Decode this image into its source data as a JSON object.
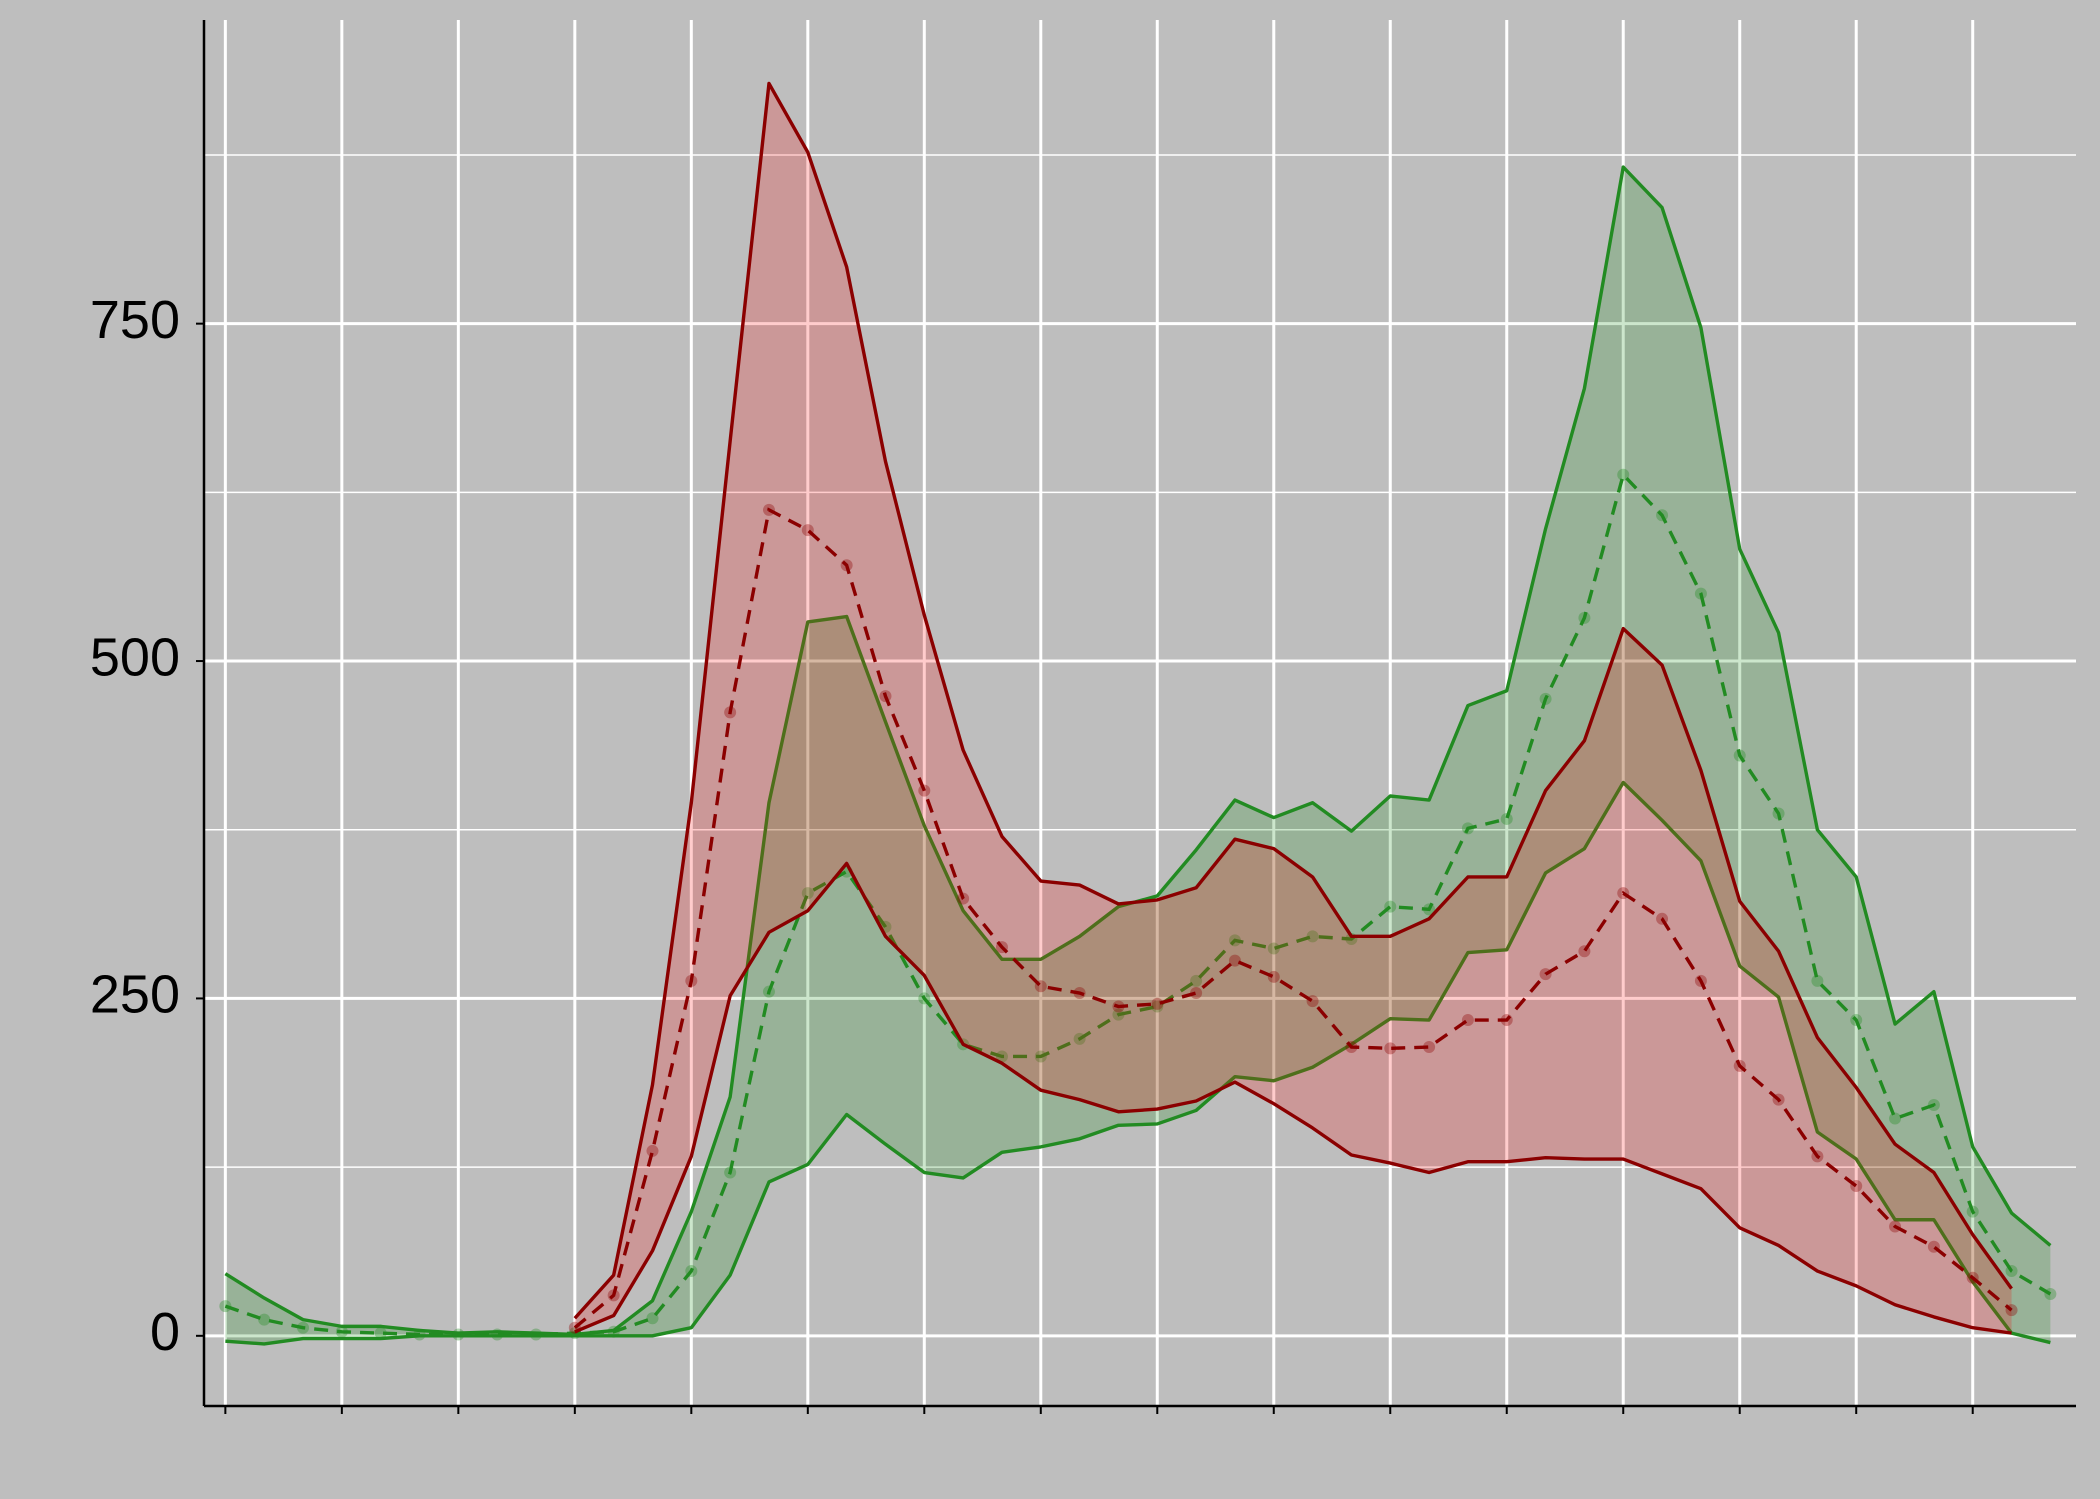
{
  "chart_data": {
    "type": "band",
    "x": [
      0,
      1,
      2,
      3,
      4,
      5,
      6,
      7,
      8,
      9,
      10,
      11,
      12,
      13,
      14,
      15,
      16,
      17,
      18,
      19,
      20,
      21,
      22,
      23,
      24,
      25,
      26,
      27,
      28,
      29,
      30,
      31,
      32,
      33,
      34,
      35,
      36,
      37,
      38,
      39,
      40,
      41,
      42,
      43,
      44,
      45,
      46,
      47
    ],
    "series": [
      {
        "color": "#228b22",
        "fill": "#008000",
        "upper": [
          46,
          28,
          12,
          7,
          7,
          4,
          2,
          3,
          2,
          1,
          4,
          26,
          92,
          177,
          395,
          529,
          533,
          455,
          378,
          315,
          279,
          279,
          296,
          318,
          326,
          360,
          397,
          384,
          395,
          374,
          400,
          397,
          467,
          478,
          598,
          702,
          866,
          836,
          747,
          583,
          521,
          375,
          340,
          231,
          255,
          140,
          91,
          67
        ],
        "values": [
          22,
          12,
          6,
          3,
          2,
          1,
          1,
          1,
          1,
          2,
          3,
          13,
          48,
          121,
          255,
          328,
          344,
          303,
          250,
          216,
          207,
          207,
          220,
          238,
          244,
          263,
          293,
          287,
          296,
          294,
          318,
          316,
          376,
          383,
          472,
          532,
          638,
          608,
          550,
          430,
          387,
          263,
          234,
          161,
          171,
          92,
          48,
          31
        ],
        "lower": [
          -4,
          -6,
          -2,
          -2,
          -2,
          0,
          0,
          0,
          0,
          0,
          0,
          0,
          6,
          45,
          114,
          127,
          164,
          142,
          121,
          117,
          136,
          140,
          146,
          156,
          157,
          167,
          192,
          189,
          199,
          216,
          235,
          234,
          284,
          286,
          343,
          361,
          410,
          382,
          352,
          274,
          251,
          151,
          131,
          86,
          86,
          40,
          2,
          -5
        ]
      },
      {
        "color": "#8b0000",
        "fill": "#ff0000",
        "upper": [
          null,
          null,
          null,
          null,
          null,
          null,
          null,
          null,
          null,
          13,
          45,
          186,
          395,
          663,
          928,
          877,
          792,
          648,
          534,
          434,
          370,
          337,
          334,
          320,
          323,
          332,
          368,
          361,
          340,
          296,
          296,
          309,
          340,
          340,
          404,
          441,
          524,
          497,
          419,
          322,
          285,
          221,
          184,
          142,
          121,
          75,
          35,
          null
        ],
        "values": [
          null,
          null,
          null,
          null,
          null,
          null,
          null,
          null,
          null,
          6,
          30,
          137,
          263,
          462,
          612,
          597,
          571,
          474,
          404,
          324,
          288,
          259,
          254,
          244,
          246,
          254,
          278,
          266,
          248,
          214,
          213,
          214,
          234,
          234,
          268,
          285,
          328,
          309,
          263,
          200,
          175,
          133,
          111,
          81,
          66,
          43,
          19,
          null
        ],
        "lower": [
          null,
          null,
          null,
          null,
          null,
          null,
          null,
          null,
          null,
          3,
          15,
          63,
          133,
          252,
          299,
          315,
          350,
          296,
          267,
          216,
          202,
          182,
          175,
          166,
          168,
          174,
          188,
          172,
          154,
          134,
          128,
          121,
          129,
          129,
          132,
          131,
          131,
          120,
          109,
          80,
          67,
          48,
          37,
          23,
          14,
          6,
          2,
          null
        ]
      }
    ],
    "xlim": [
      -0.55,
      47.66
    ],
    "xticks": [
      0,
      3,
      6,
      9,
      12,
      15,
      18,
      21,
      24,
      27,
      30,
      33,
      36,
      39,
      42,
      45
    ],
    "ylim": [
      -52,
      975
    ],
    "yticks": [
      0,
      250,
      500,
      750
    ],
    "yticks_minor": [
      125,
      375,
      625,
      875
    ],
    "grid": true
  }
}
